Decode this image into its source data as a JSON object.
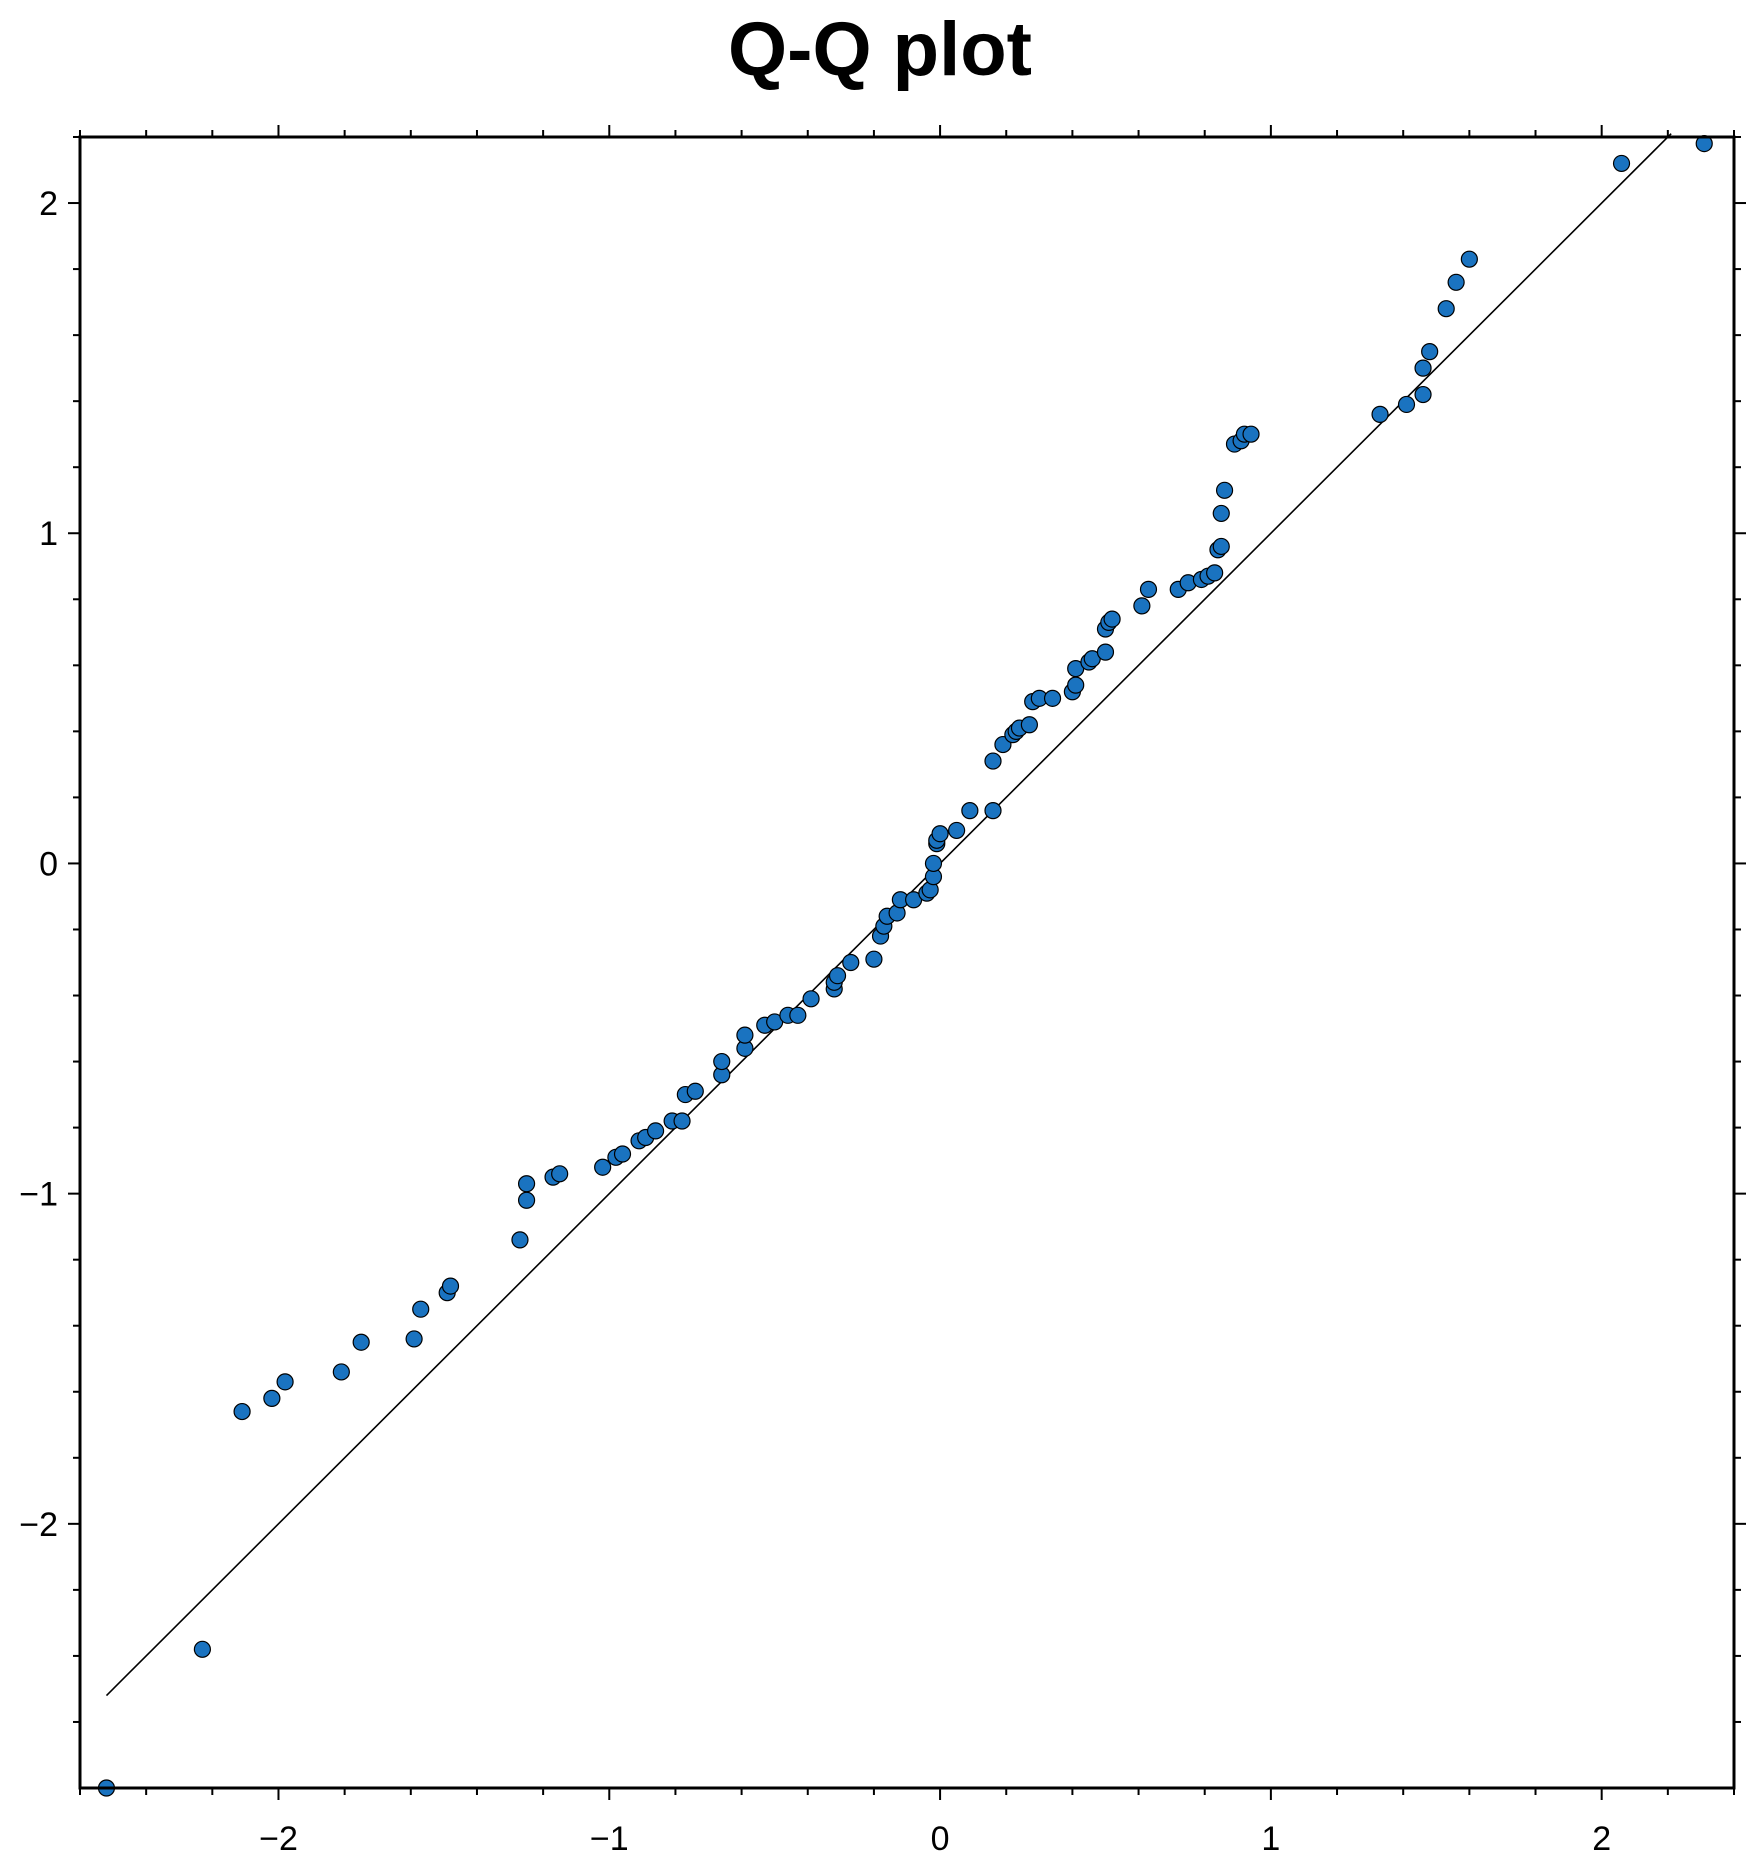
{
  "chart_data": {
    "type": "scatter",
    "title": "Q-Q plot",
    "xlabel": "",
    "ylabel": "",
    "xlim": [
      -2.6,
      2.4
    ],
    "ylim": [
      -2.8,
      2.2
    ],
    "x_ticks": [
      -2,
      -1,
      0,
      1,
      2
    ],
    "x_tick_labels": [
      "−2",
      "−1",
      "0",
      "1",
      "2"
    ],
    "y_ticks": [
      -2,
      -1,
      0,
      1,
      2
    ],
    "y_tick_labels": [
      "−2",
      "−1",
      "0",
      "1",
      "2"
    ],
    "grid": false,
    "marker_color": "#1a73c0",
    "reference_line": {
      "x": [
        -2.52,
        2.21
      ],
      "y": [
        -2.52,
        2.21
      ],
      "color": "#000000"
    },
    "series": [
      {
        "x": [
          -2.52,
          -2.23,
          -2.11,
          -2.02,
          -1.98,
          -1.81,
          -1.75,
          -1.59,
          -1.57,
          -1.49,
          -1.48,
          -1.27,
          -1.25,
          -1.25,
          -1.17,
          -1.15,
          -1.02,
          -0.98,
          -0.96,
          -0.91,
          -0.89,
          -0.86,
          -0.81,
          -0.78,
          -0.77,
          -0.74,
          -0.66,
          -0.66,
          -0.59,
          -0.59,
          -0.53,
          -0.5,
          -0.46,
          -0.43,
          -0.39,
          -0.32,
          -0.32,
          -0.31,
          -0.27,
          -0.2,
          -0.18,
          -0.17,
          -0.16,
          -0.13,
          -0.12,
          -0.08,
          -0.04,
          -0.03,
          -0.02,
          -0.02,
          -0.01,
          -0.01,
          0.0,
          0.05,
          0.09,
          0.16,
          0.16,
          0.19,
          0.22,
          0.23,
          0.24,
          0.27,
          0.28,
          0.3,
          0.34,
          0.4,
          0.41,
          0.41,
          0.45,
          0.46,
          0.5,
          0.5,
          0.51,
          0.52,
          0.61,
          0.63,
          0.72,
          0.75,
          0.79,
          0.81,
          0.83,
          0.84,
          0.85,
          0.85,
          0.86,
          0.89,
          0.91,
          0.92,
          0.94,
          1.33,
          1.41,
          1.46,
          1.46,
          1.48,
          1.53,
          1.56,
          1.6,
          2.06,
          2.31
        ],
        "y": [
          -2.8,
          -2.38,
          -1.66,
          -1.62,
          -1.57,
          -1.54,
          -1.45,
          -1.44,
          -1.35,
          -1.3,
          -1.28,
          -1.14,
          -1.02,
          -0.97,
          -0.95,
          -0.94,
          -0.92,
          -0.89,
          -0.88,
          -0.84,
          -0.83,
          -0.81,
          -0.78,
          -0.78,
          -0.7,
          -0.69,
          -0.64,
          -0.6,
          -0.56,
          -0.52,
          -0.49,
          -0.48,
          -0.46,
          -0.46,
          -0.41,
          -0.38,
          -0.36,
          -0.34,
          -0.3,
          -0.29,
          -0.22,
          -0.19,
          -0.16,
          -0.15,
          -0.11,
          -0.11,
          -0.09,
          -0.08,
          -0.04,
          0.0,
          0.06,
          0.07,
          0.09,
          0.1,
          0.16,
          0.16,
          0.31,
          0.36,
          0.39,
          0.4,
          0.41,
          0.42,
          0.49,
          0.5,
          0.5,
          0.52,
          0.54,
          0.59,
          0.61,
          0.62,
          0.64,
          0.71,
          0.73,
          0.74,
          0.78,
          0.83,
          0.83,
          0.85,
          0.86,
          0.87,
          0.88,
          0.95,
          0.96,
          1.06,
          1.13,
          1.27,
          1.28,
          1.3,
          1.3,
          1.36,
          1.39,
          1.42,
          1.5,
          1.55,
          1.68,
          1.76,
          1.83,
          2.12,
          2.18
        ]
      }
    ]
  }
}
